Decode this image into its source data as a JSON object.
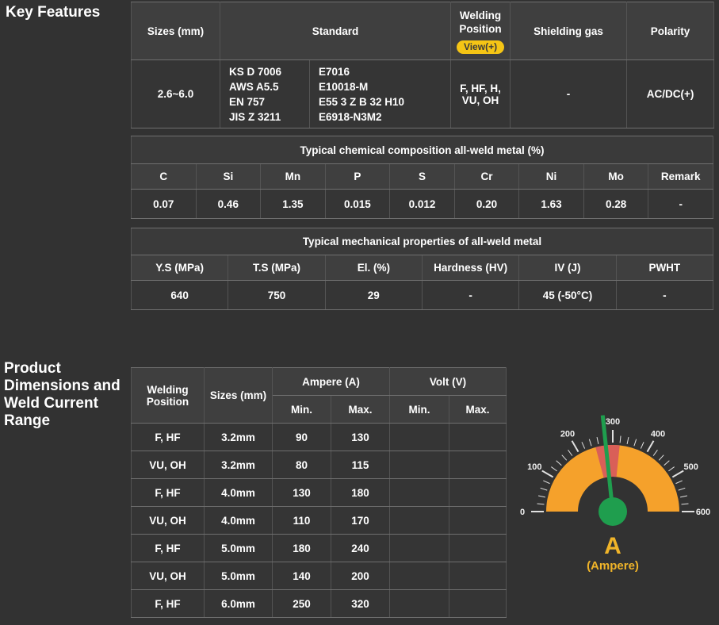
{
  "headings": {
    "key_features": "Key Features",
    "product_dimensions": "Product Dimensions and Weld Current Range"
  },
  "key_table": {
    "headers": {
      "sizes": "Sizes (mm)",
      "standard": "Standard",
      "welding_position": "Welding Position",
      "view_badge": "View(+)",
      "shielding_gas": "Shielding gas",
      "polarity": "Polarity"
    },
    "row": {
      "sizes": "2.6~6.0",
      "standard_a": "KS D 7006\nAWS A5.5\nEN 757\nJIS Z 3211",
      "standard_b": "E7016\nE10018-M\nE55 3 Z B 32 H10\nE6918-N3M2",
      "welding_position": "F, HF, H, VU, OH",
      "shielding_gas": "-",
      "polarity": "AC/DC(+)"
    }
  },
  "chem_table": {
    "title": "Typical chemical composition all-weld metal (%)",
    "headers": [
      "C",
      "Si",
      "Mn",
      "P",
      "S",
      "Cr",
      "Ni",
      "Mo",
      "Remark"
    ],
    "values": [
      "0.07",
      "0.46",
      "1.35",
      "0.015",
      "0.012",
      "0.20",
      "1.63",
      "0.28",
      "-"
    ]
  },
  "mech_table": {
    "title": "Typical mechanical properties of all-weld metal",
    "headers": [
      "Y.S (MPa)",
      "T.S (MPa)",
      "El. (%)",
      "Hardness (HV)",
      "IV (J)",
      "PWHT"
    ],
    "values": [
      "640",
      "750",
      "29",
      "-",
      "45 (-50°C)",
      "-"
    ]
  },
  "current_table": {
    "headers": {
      "position": "Welding Position",
      "sizes": "Sizes (mm)",
      "ampere": "Ampere (A)",
      "volt": "Volt (V)",
      "min": "Min.",
      "max": "Max.",
      "min2": "Min.",
      "max2": "Max."
    },
    "rows": [
      {
        "position": "F, HF",
        "size": "3.2mm",
        "a_min": "90",
        "a_max": "130",
        "v_min": "",
        "v_max": ""
      },
      {
        "position": "VU, OH",
        "size": "3.2mm",
        "a_min": "80",
        "a_max": "115",
        "v_min": "",
        "v_max": ""
      },
      {
        "position": "F, HF",
        "size": "4.0mm",
        "a_min": "130",
        "a_max": "180",
        "v_min": "",
        "v_max": ""
      },
      {
        "position": "VU, OH",
        "size": "4.0mm",
        "a_min": "110",
        "a_max": "170",
        "v_min": "",
        "v_max": ""
      },
      {
        "position": "F, HF",
        "size": "5.0mm",
        "a_min": "180",
        "a_max": "240",
        "v_min": "",
        "v_max": ""
      },
      {
        "position": "VU, OH",
        "size": "5.0mm",
        "a_min": "140",
        "a_max": "200",
        "v_min": "",
        "v_max": ""
      },
      {
        "position": "F, HF",
        "size": "6.0mm",
        "a_min": "250",
        "a_max": "320",
        "v_min": "",
        "v_max": ""
      }
    ]
  },
  "chart_data": {
    "type": "gauge",
    "title": "Weld current range gauge",
    "unit_label": "A",
    "unit_sub": "(Ampere)",
    "min": 0,
    "max": 600,
    "major_tick_step": 100,
    "minor_tick_step": 20,
    "tick_labels": [
      "0",
      "100",
      "200",
      "300",
      "400",
      "500",
      "600"
    ],
    "needle_value": 280,
    "highlight_range": [
      250,
      320
    ],
    "band_color": "#F5A12B",
    "highlight_color": "#D95F58",
    "needle_color": "#1F9E4E",
    "tick_color": "#E0E0E0",
    "label_color": "#F0F0F0",
    "unit_color": "#F0B429"
  },
  "colors": {
    "page_bg": "#323232",
    "header_bg": "#3F3F3F",
    "value_yellow": "#F3C22A",
    "badge_yellow": "#F5C515"
  }
}
